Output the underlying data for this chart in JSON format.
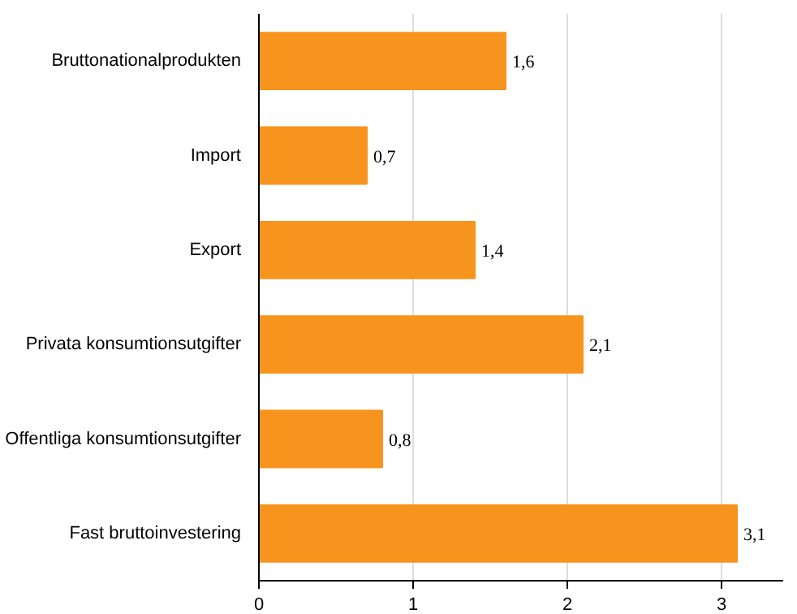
{
  "chart_data": {
    "type": "bar",
    "orientation": "horizontal",
    "categories": [
      "Bruttonationalprodukten",
      "Import",
      "Export",
      "Privata konsumtionsutgifter",
      "Offentliga konsumtionsutgifter",
      "Fast bruttoinvestering"
    ],
    "values": [
      1.6,
      0.7,
      1.4,
      2.1,
      0.8,
      3.1
    ],
    "value_labels": [
      "1,6",
      "0,7",
      "1,4",
      "2,1",
      "0,8",
      "3,1"
    ],
    "color": "#f7941d",
    "xlim": [
      0,
      3.4
    ],
    "xticks": [
      0,
      1,
      2,
      3
    ],
    "grid": "x"
  }
}
